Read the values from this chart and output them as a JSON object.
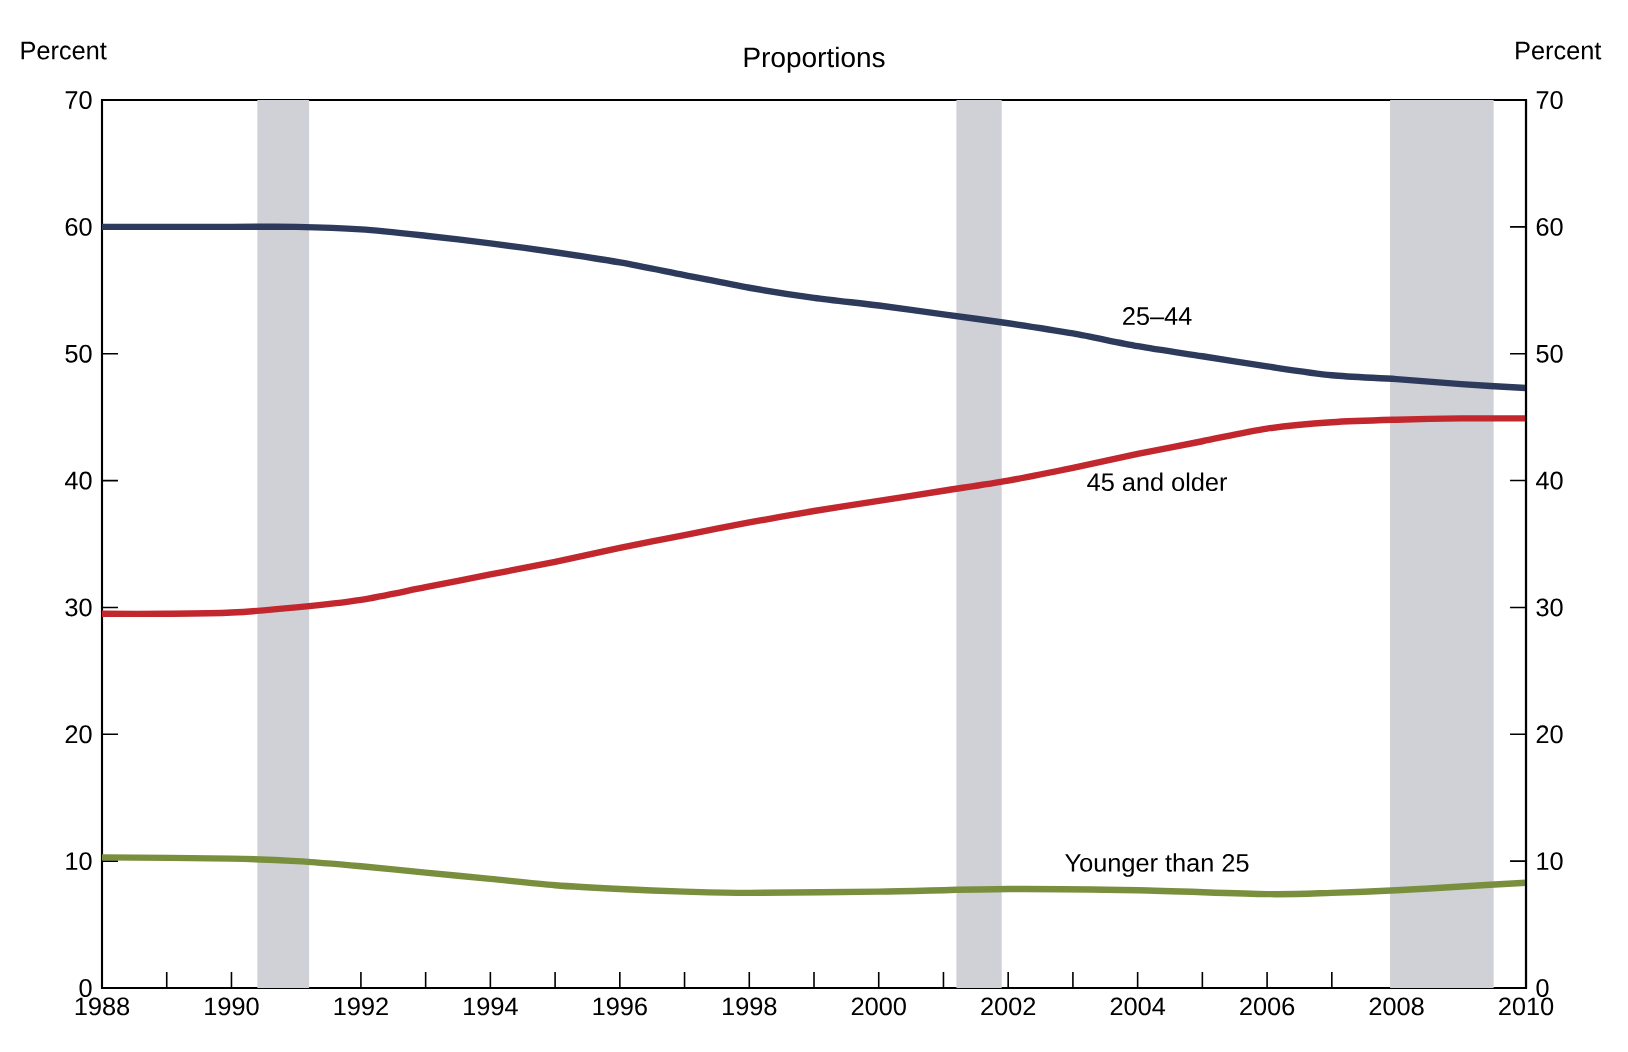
{
  "chart_data": {
    "type": "line",
    "title": "Proportions",
    "ylabel": "Percent",
    "y2label": "Percent",
    "xlim": [
      1988,
      2010
    ],
    "xticks": [
      1988,
      {
        "value": 1989,
        "label": null
      },
      1990,
      {
        "value": 1991,
        "label": null
      },
      1992,
      {
        "value": 1993,
        "label": null
      },
      1994,
      {
        "value": 1995,
        "label": null
      },
      1996,
      {
        "value": 1997,
        "label": null
      },
      1998,
      {
        "value": 1999,
        "label": null
      },
      2000,
      {
        "value": 2001,
        "label": null
      },
      2002,
      {
        "value": 2003,
        "label": null
      },
      2004,
      {
        "value": 2005,
        "label": null
      },
      2006,
      {
        "value": 2007,
        "label": null
      },
      2008,
      {
        "value": 2009,
        "label": null
      },
      2010
    ],
    "ylim": [
      0,
      70
    ],
    "yticks": [
      0,
      10,
      20,
      30,
      40,
      50,
      60,
      70
    ],
    "y2lim": [
      0,
      70
    ],
    "y2ticks": [
      0,
      10,
      20,
      30,
      40,
      50,
      60,
      70
    ],
    "grid": false,
    "marker": "none",
    "line_style": "solid",
    "bands": [
      {
        "axis": "x",
        "from": 1990.4,
        "to": 1991.2,
        "color": "#d0d1d6"
      },
      {
        "axis": "x",
        "from": 2001.2,
        "to": 2001.9,
        "color": "#d0d1d6"
      },
      {
        "axis": "x",
        "from": 2007.9,
        "to": 2009.5,
        "color": "#d0d1d6"
      }
    ],
    "series": [
      {
        "name": "25–44",
        "color": "#2e3a5c",
        "x": [
          1988,
          1990,
          1991,
          1992,
          1993,
          1994,
          1995,
          1996,
          1997,
          1998,
          1999,
          2000,
          2001,
          2002,
          2003,
          2004,
          2005,
          2006,
          2007,
          2008,
          2009,
          2010
        ],
        "values": [
          60,
          60,
          60,
          59.8,
          59.3,
          58.7,
          58,
          57.2,
          56.2,
          55.2,
          54.4,
          53.8,
          53.1,
          52.4,
          51.6,
          50.6,
          49.8,
          49,
          48.3,
          48,
          47.6,
          47.3
        ]
      },
      {
        "name": "45 and older",
        "color": "#c1272d",
        "x": [
          1988,
          1989,
          1990,
          1991,
          1992,
          1993,
          1994,
          1995,
          1996,
          1997,
          1998,
          1999,
          2000,
          2001,
          2002,
          2003,
          2004,
          2005,
          2006,
          2007,
          2008,
          2009,
          2010
        ],
        "values": [
          29.5,
          29.5,
          29.6,
          30,
          30.6,
          31.6,
          32.6,
          33.6,
          34.7,
          35.7,
          36.7,
          37.6,
          38.4,
          39.2,
          40,
          41,
          42.1,
          43.1,
          44.1,
          44.6,
          44.8,
          44.9,
          44.9
        ]
      },
      {
        "name": "Younger than 25",
        "color": "#7a8f3e",
        "x": [
          1988,
          1990,
          1991,
          1992,
          1993,
          1994,
          1995,
          1996,
          1997,
          1998,
          2000,
          2002,
          2004,
          2006,
          2007,
          2008,
          2009,
          2010
        ],
        "values": [
          10.3,
          10.2,
          10,
          9.6,
          9.1,
          8.6,
          8.1,
          7.8,
          7.6,
          7.5,
          7.6,
          7.8,
          7.7,
          7.4,
          7.5,
          7.7,
          8,
          8.3
        ]
      }
    ]
  }
}
